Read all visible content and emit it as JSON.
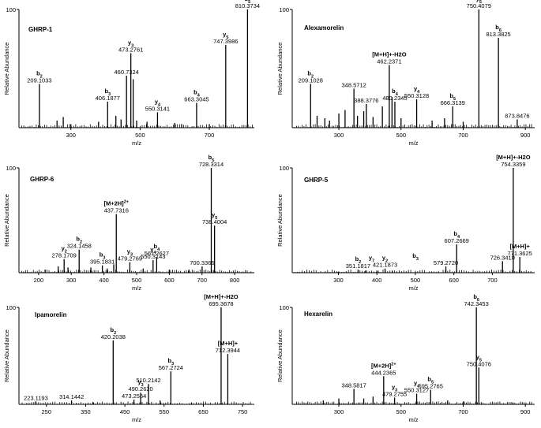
{
  "chart_data": [
    {
      "type": "bar",
      "title": "GHRP-1",
      "xlabel": "m/z",
      "ylabel": "Relative Abundance",
      "xlim": [
        150,
        830
      ],
      "ylim": [
        0,
        100
      ],
      "x_ticks": [
        "300",
        "500",
        "700"
      ],
      "y_ticks": [
        "100"
      ],
      "peaks": [
        {
          "mz": 209.1033,
          "y": 37,
          "label": "209.1033",
          "ion": "b",
          "sub": "2"
        },
        {
          "mz": 260,
          "y": 6
        },
        {
          "mz": 278,
          "y": 9
        },
        {
          "mz": 300,
          "y": 3
        },
        {
          "mz": 380,
          "y": 5
        },
        {
          "mz": 406.1877,
          "y": 22,
          "label": "406.1877",
          "ion": "b",
          "sub": "3"
        },
        {
          "mz": 430,
          "y": 10
        },
        {
          "mz": 445,
          "y": 7
        },
        {
          "mz": 460.7324,
          "y": 44,
          "label": "460.7324"
        },
        {
          "mz": 473.2761,
          "y": 63,
          "label": "473.2761",
          "ion": "y",
          "sub": "3"
        },
        {
          "mz": 480,
          "y": 41
        },
        {
          "mz": 490,
          "y": 6
        },
        {
          "mz": 520,
          "y": 5
        },
        {
          "mz": 550.3141,
          "y": 13,
          "label": "550.3141",
          "ion": "y",
          "sub": "4"
        },
        {
          "mz": 600,
          "y": 4
        },
        {
          "mz": 620,
          "y": 3
        },
        {
          "mz": 663.3045,
          "y": 21,
          "label": "663.3045",
          "ion": "b",
          "sub": "4"
        },
        {
          "mz": 700,
          "y": 3
        },
        {
          "mz": 747.3986,
          "y": 70,
          "label": "747.3986",
          "ion": "y",
          "sub": "5"
        },
        {
          "mz": 810.3734,
          "y": 100,
          "label": "810.3734",
          "ion": "b",
          "sub": "5"
        }
      ]
    },
    {
      "type": "bar",
      "title": "Alexamorelin",
      "xlabel": "m/z",
      "ylabel": "Relative Abundance",
      "xlim": [
        150,
        930
      ],
      "ylim": [
        0,
        100
      ],
      "x_ticks": [
        "300",
        "500",
        "700",
        "900"
      ],
      "y_ticks": [
        "100"
      ],
      "peaks": [
        {
          "mz": 209.1028,
          "y": 37,
          "label": "209.1028",
          "ion": "b",
          "sub": "2"
        },
        {
          "mz": 230,
          "y": 10
        },
        {
          "mz": 255,
          "y": 8
        },
        {
          "mz": 270,
          "y": 6
        },
        {
          "mz": 300,
          "y": 12
        },
        {
          "mz": 320,
          "y": 15
        },
        {
          "mz": 348.5712,
          "y": 33,
          "label": "348.5712"
        },
        {
          "mz": 360,
          "y": 10
        },
        {
          "mz": 380,
          "y": 14
        },
        {
          "mz": 388.3776,
          "y": 20,
          "label": "388.3776"
        },
        {
          "mz": 410,
          "y": 9
        },
        {
          "mz": 440,
          "y": 18
        },
        {
          "mz": 462.2371,
          "y": 53,
          "label": "462.2371",
          "ion": "[M+H]+-H2O"
        },
        {
          "mz": 471,
          "y": 26
        },
        {
          "mz": 480.2345,
          "y": 22,
          "label": "480.2345",
          "ion": "b",
          "sub": "4"
        },
        {
          "mz": 500,
          "y": 8
        },
        {
          "mz": 550.3128,
          "y": 24,
          "label": "550.3128",
          "ion": "y",
          "sub": "4"
        },
        {
          "mz": 600,
          "y": 6
        },
        {
          "mz": 640,
          "y": 8
        },
        {
          "mz": 666.3139,
          "y": 18,
          "label": "666.3139",
          "ion": "b",
          "sub": "5"
        },
        {
          "mz": 700,
          "y": 5
        },
        {
          "mz": 750.4079,
          "y": 100,
          "label": "750.4079",
          "ion": "y",
          "sub": "5"
        },
        {
          "mz": 813.3825,
          "y": 76,
          "label": "813.3825",
          "ion": "b",
          "sub": "6"
        },
        {
          "mz": 873.8476,
          "y": 7,
          "label": "873.8476"
        }
      ]
    },
    {
      "type": "bar",
      "title": "GHRP-6",
      "xlabel": "m/z",
      "ylabel": "Relative Abundance",
      "xlim": [
        140,
        860
      ],
      "ylim": [
        0,
        100
      ],
      "x_ticks": [
        "200",
        "300",
        "400",
        "500",
        "600",
        "700",
        "800"
      ],
      "y_ticks": [
        "100"
      ],
      "peaks": [
        {
          "mz": 220,
          "y": 3
        },
        {
          "mz": 260,
          "y": 6
        },
        {
          "mz": 278.1709,
          "y": 13,
          "label": "278.1709",
          "ion": "y",
          "sub": "2"
        },
        {
          "mz": 290,
          "y": 5
        },
        {
          "mz": 324.1458,
          "y": 22,
          "label": "324.1458",
          "ion": "b",
          "sub": "2"
        },
        {
          "mz": 360,
          "y": 5
        },
        {
          "mz": 395.1831,
          "y": 7,
          "label": "395.1831",
          "ion": "b",
          "sub": "3"
        },
        {
          "mz": 410,
          "y": 4
        },
        {
          "mz": 430,
          "y": 8
        },
        {
          "mz": 437.7316,
          "y": 56,
          "label": "437.7316",
          "ion": "[M+2H]2+"
        },
        {
          "mz": 479.2769,
          "y": 10,
          "label": "479.2769",
          "ion": "y",
          "sub": "3"
        },
        {
          "mz": 520,
          "y": 4
        },
        {
          "mz": 550.3143,
          "y": 12,
          "label": "550.3143",
          "ion": "y",
          "sub": "4"
        },
        {
          "mz": 561.2627,
          "y": 15,
          "label": "561.2627",
          "ion": "b",
          "sub": "4"
        },
        {
          "mz": 600,
          "y": 3
        },
        {
          "mz": 660,
          "y": 3
        },
        {
          "mz": 700.3366,
          "y": 6,
          "label": "700.3366"
        },
        {
          "mz": 728.3314,
          "y": 100,
          "label": "728.3314",
          "ion": "b",
          "sub": "5"
        },
        {
          "mz": 738.4004,
          "y": 45,
          "label": "738.4004",
          "ion": "y",
          "sub": "5"
        }
      ]
    },
    {
      "type": "bar",
      "title": "GHRP-5",
      "xlabel": "m/z",
      "ylabel": "Relative Abundance",
      "xlim": [
        180,
        810
      ],
      "ylim": [
        0,
        100
      ],
      "x_ticks": [
        "300",
        "400",
        "500",
        "600",
        "700"
      ],
      "y_ticks": [
        "100"
      ],
      "peaks": [
        {
          "mz": 300,
          "y": 1
        },
        {
          "mz": 351.1817,
          "y": 3,
          "label": "351.1817",
          "ion": "b",
          "sub": "2"
        },
        {
          "mz": 370,
          "y": 2
        },
        {
          "mz": 400,
          "y": 2
        },
        {
          "mz": 421.1873,
          "y": 4,
          "label": "421.1873",
          "ion": "y",
          "sub": "2"
        },
        {
          "mz": 440,
          "y": 2
        },
        {
          "mz": 579.272,
          "y": 6,
          "label": "579.2720"
        },
        {
          "mz": 607.2669,
          "y": 27,
          "label": "607.2669",
          "ion": "b",
          "sub": "4"
        },
        {
          "mz": 726.341,
          "y": 11,
          "label": "726.3410"
        },
        {
          "mz": 754.3359,
          "y": 100,
          "label": "754.3359",
          "ion": "[M+H]+-H2O"
        },
        {
          "mz": 771.3625,
          "y": 15,
          "label": "771.3625",
          "ion": "[M+H]+"
        }
      ],
      "extra_ions": [
        {
          "ion": "y",
          "sub": "7"
        },
        {
          "ion": "b",
          "sub": "3"
        }
      ]
    },
    {
      "type": "bar",
      "title": "Ipamorelin",
      "xlabel": "m/z",
      "ylabel": "Relative Abundance",
      "xlim": [
        180,
        780
      ],
      "ylim": [
        0,
        100
      ],
      "x_ticks": [
        "250",
        "350",
        "450",
        "550",
        "650",
        "750"
      ],
      "y_ticks": [
        "100"
      ],
      "peaks": [
        {
          "mz": 223.1193,
          "y": 3,
          "label": "223.1193"
        },
        {
          "mz": 314.1442,
          "y": 4,
          "label": "314.1442"
        },
        {
          "mz": 370,
          "y": 2
        },
        {
          "mz": 420.2038,
          "y": 66,
          "label": "420.2038",
          "ion": "b",
          "sub": "2"
        },
        {
          "mz": 473.2564,
          "y": 5,
          "label": "473.2564"
        },
        {
          "mz": 490.262,
          "y": 12,
          "label": "490.2620",
          "ion": "y",
          "sub": "3"
        },
        {
          "mz": 510.2142,
          "y": 21,
          "label": "510.2142"
        },
        {
          "mz": 540,
          "y": 4
        },
        {
          "mz": 567.2724,
          "y": 34,
          "label": "567.2724",
          "ion": "b",
          "sub": "3"
        },
        {
          "mz": 620,
          "y": 2
        },
        {
          "mz": 695.3678,
          "y": 100,
          "label": "695.3678",
          "ion": "[M+H]+-H2O"
        },
        {
          "mz": 712.3944,
          "y": 52,
          "label": "712.3944",
          "ion": "[M+H]+"
        }
      ]
    },
    {
      "type": "bar",
      "title": "Hexarelin",
      "xlabel": "m/z",
      "ylabel": "Relative Abundance",
      "xlim": [
        150,
        930
      ],
      "ylim": [
        0,
        100
      ],
      "x_ticks": [
        "300",
        "500",
        "700",
        "900"
      ],
      "y_ticks": [
        "100"
      ],
      "peaks": [
        {
          "mz": 250,
          "y": 4
        },
        {
          "mz": 300,
          "y": 6
        },
        {
          "mz": 348.5817,
          "y": 16,
          "label": "348.5817"
        },
        {
          "mz": 380,
          "y": 6
        },
        {
          "mz": 410,
          "y": 8
        },
        {
          "mz": 444.2365,
          "y": 29,
          "label": "444.2365",
          "ion": "[M+2H]2+"
        },
        {
          "mz": 479.2755,
          "y": 7,
          "label": "479.2755",
          "ion": "y",
          "sub": "3"
        },
        {
          "mz": 550.3127,
          "y": 11,
          "label": "550.3127",
          "ion": "y",
          "sub": "4"
        },
        {
          "mz": 595.2765,
          "y": 15,
          "label": "595.2765",
          "ion": "b",
          "sub": "5"
        },
        {
          "mz": 650,
          "y": 4
        },
        {
          "mz": 700,
          "y": 3
        },
        {
          "mz": 742.3453,
          "y": 100,
          "label": "742.3453",
          "ion": "b",
          "sub": "6"
        },
        {
          "mz": 750.4076,
          "y": 38,
          "label": "750.4076",
          "ion": "y",
          "sub": "5"
        },
        {
          "mz": 860,
          "y": 2
        }
      ]
    }
  ]
}
